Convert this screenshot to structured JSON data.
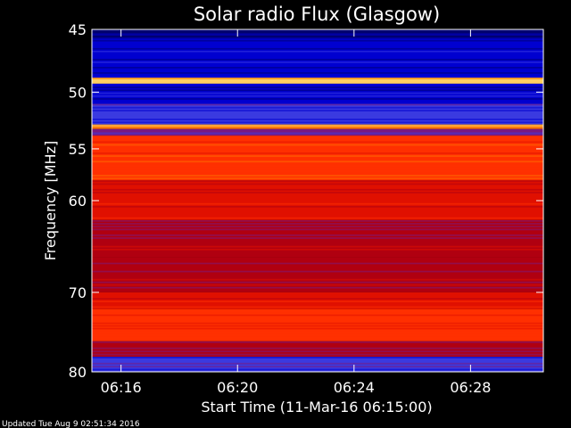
{
  "chart_data": {
    "type": "heatmap",
    "title": "Solar radio Flux (Glasgow)",
    "xlabel": "Start Time (11-Mar-16 06:15:00)",
    "ylabel": "Frequency [MHz]",
    "footer": "Updated Tue Aug  9 02:51:34 2016",
    "xlim": [
      "06:15:00",
      "06:30:30"
    ],
    "ylim": [
      45,
      80
    ],
    "y_scale": "log",
    "x_ticks": [
      "06:16",
      "06:20",
      "06:24",
      "06:28"
    ],
    "y_ticks": [
      45,
      50,
      55,
      60,
      70,
      80
    ],
    "colormap": [
      "#000070",
      "#0000d0",
      "#3a3ae0",
      "#7a1a80",
      "#b00010",
      "#e01000",
      "#ff3000",
      "#ff7000",
      "#ffd060"
    ],
    "frequency_bands": [
      {
        "from_mhz": 45.0,
        "to_mhz": 45.6,
        "level": 0.05
      },
      {
        "from_mhz": 45.6,
        "to_mhz": 48.8,
        "level": 0.12
      },
      {
        "from_mhz": 48.8,
        "to_mhz": 49.3,
        "level": 1.0
      },
      {
        "from_mhz": 49.3,
        "to_mhz": 51.0,
        "level": 0.12
      },
      {
        "from_mhz": 51.0,
        "to_mhz": 52.8,
        "level": 0.2
      },
      {
        "from_mhz": 52.8,
        "to_mhz": 53.2,
        "level": 0.85
      },
      {
        "from_mhz": 53.2,
        "to_mhz": 53.8,
        "level": 0.35
      },
      {
        "from_mhz": 53.8,
        "to_mhz": 58.0,
        "level": 0.78
      },
      {
        "from_mhz": 58.0,
        "to_mhz": 62.0,
        "level": 0.6
      },
      {
        "from_mhz": 62.0,
        "to_mhz": 66.0,
        "level": 0.45
      },
      {
        "from_mhz": 66.0,
        "to_mhz": 70.0,
        "level": 0.5
      },
      {
        "from_mhz": 70.0,
        "to_mhz": 72.0,
        "level": 0.65
      },
      {
        "from_mhz": 72.0,
        "to_mhz": 76.0,
        "level": 0.7
      },
      {
        "from_mhz": 76.0,
        "to_mhz": 78.0,
        "level": 0.45
      },
      {
        "from_mhz": 78.0,
        "to_mhz": 80.0,
        "level": 0.25
      }
    ]
  }
}
